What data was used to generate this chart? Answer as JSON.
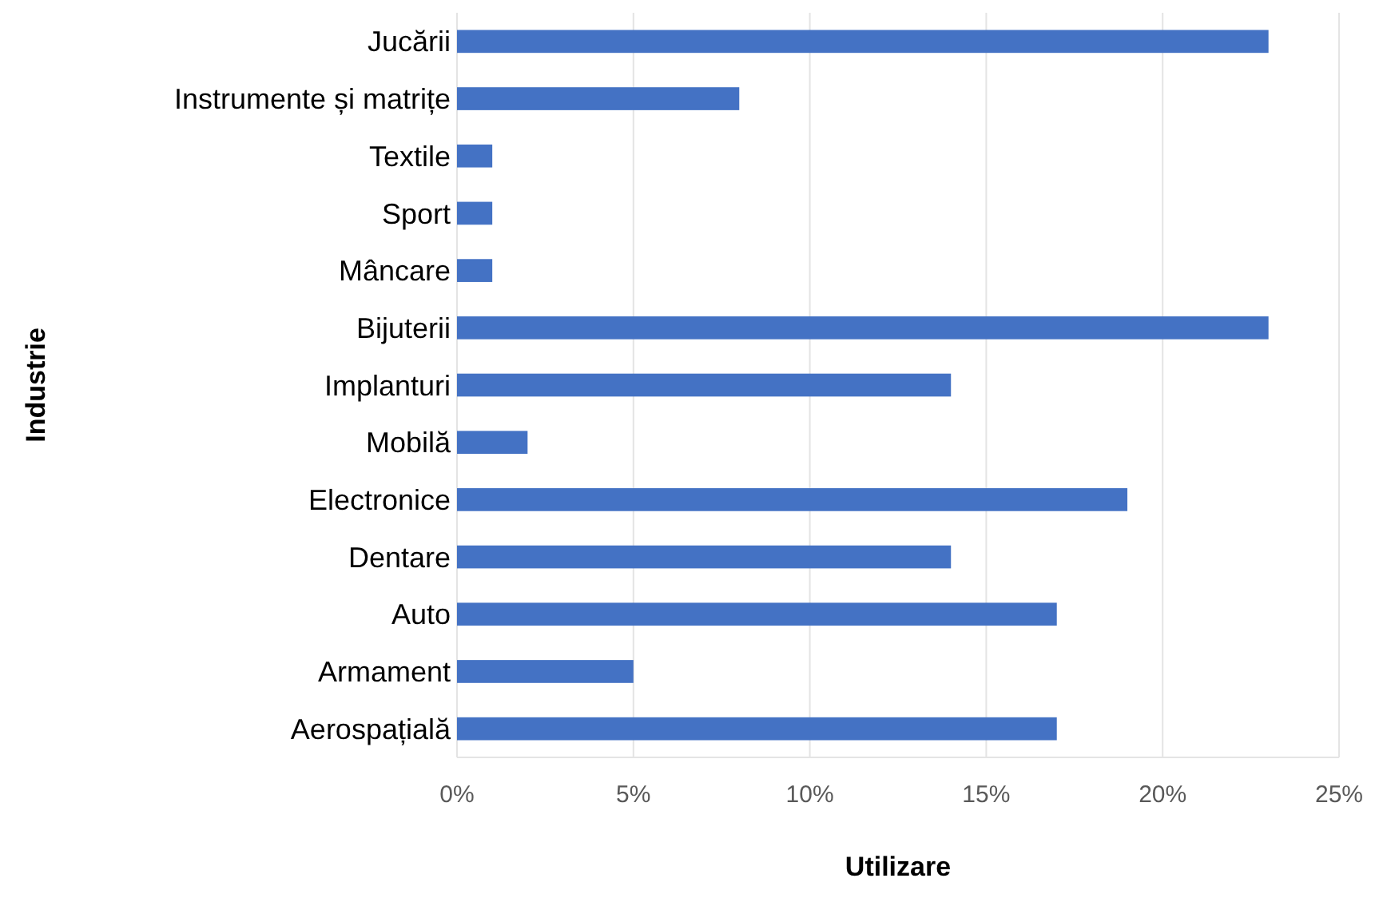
{
  "chart_data": {
    "type": "bar",
    "orientation": "horizontal",
    "xlabel": "Utilizare",
    "ylabel": "Industrie",
    "categories": [
      "Jucării",
      "Instrumente și matrițe",
      "Textile",
      "Sport",
      "Mâncare",
      "Bijuterii",
      "Implanturi",
      "Mobilă",
      "Electronice",
      "Dentare",
      "Auto",
      "Armament",
      "Aerospațială"
    ],
    "values": [
      23,
      8,
      1,
      1,
      1,
      23,
      14,
      2,
      19,
      14,
      17,
      5,
      17
    ],
    "color": "#4472c4",
    "xlim": [
      0,
      25
    ],
    "xticks": [
      {
        "value": 0,
        "label": "0%"
      },
      {
        "value": 5,
        "label": "5%"
      },
      {
        "value": 10,
        "label": "10%"
      },
      {
        "value": 15,
        "label": "15%"
      },
      {
        "value": 20,
        "label": "20%"
      },
      {
        "value": 25,
        "label": "25%"
      }
    ],
    "grid": "x"
  }
}
